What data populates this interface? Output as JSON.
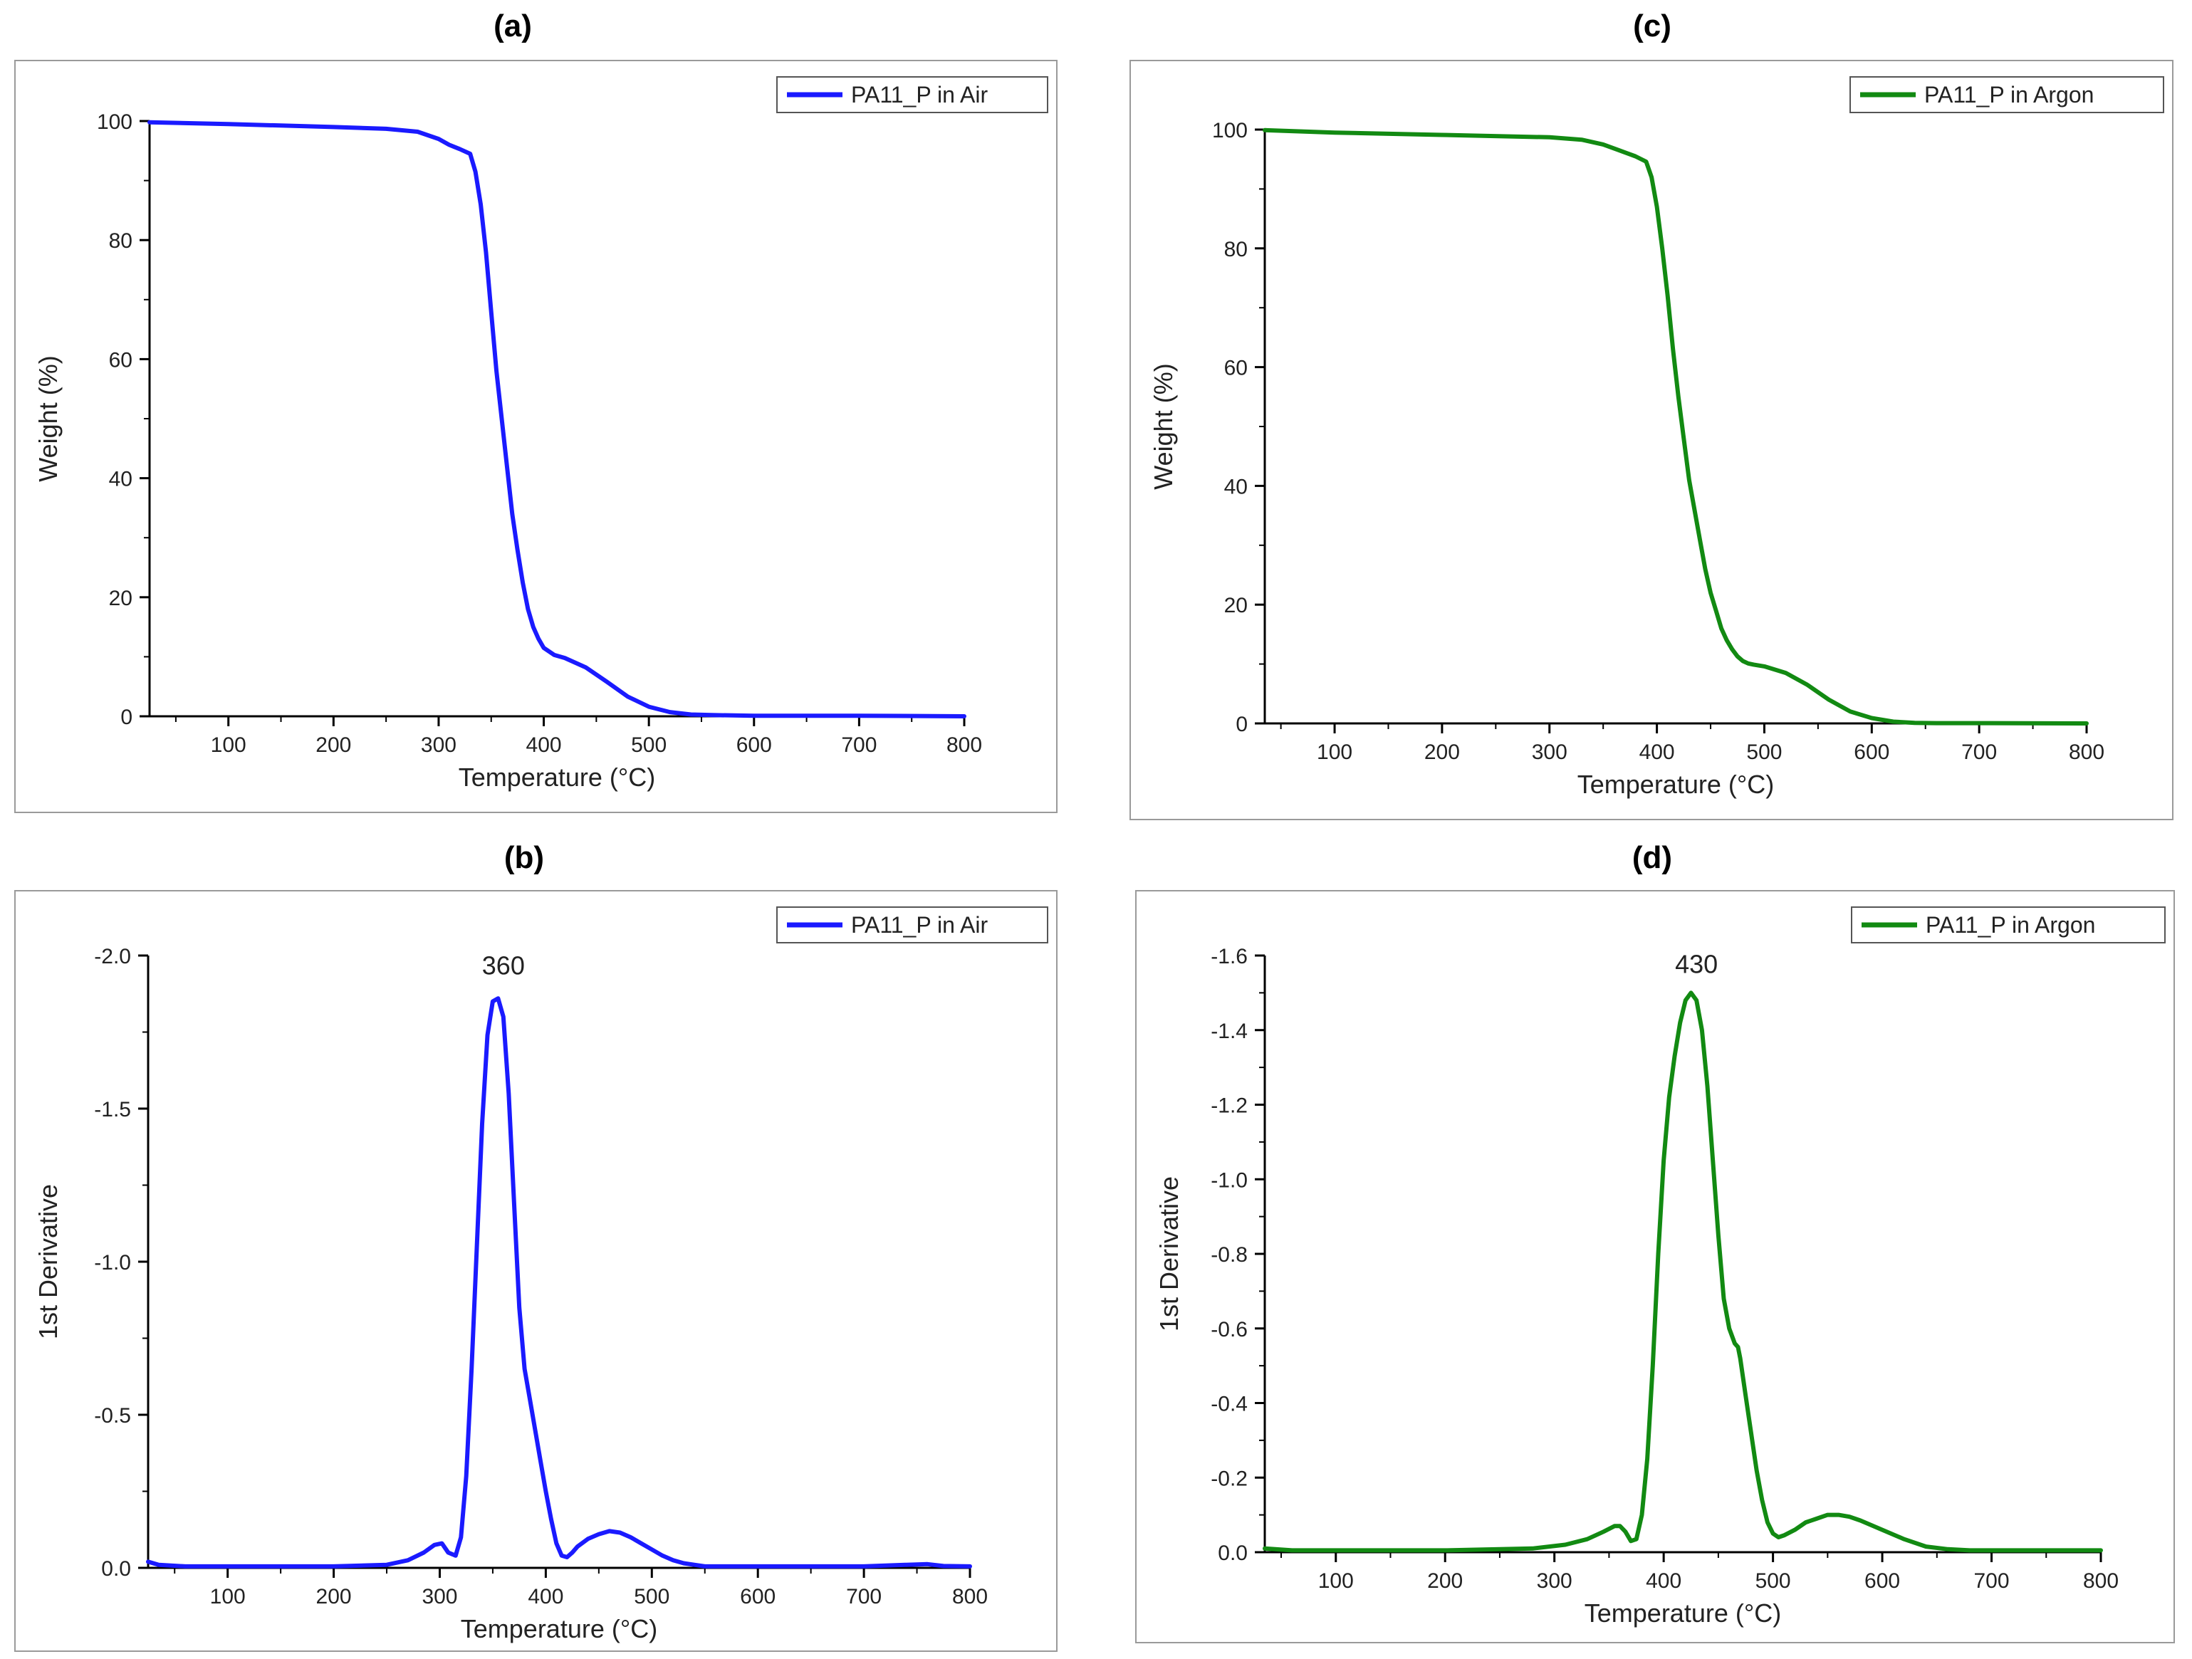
{
  "colors": {
    "air": "#1a1aff",
    "argon": "#128a12",
    "axis": "#000000",
    "frame": "#9a9a9a"
  },
  "chart_data": [
    {
      "panel": "(a)",
      "type": "line",
      "xlabel": "Temperature (°C)",
      "ylabel": "Weight (%)",
      "xlim": [
        25,
        800
      ],
      "ylim": [
        0,
        100
      ],
      "xticks": [
        100,
        200,
        300,
        400,
        500,
        600,
        700,
        800
      ],
      "yticks": [
        0,
        20,
        40,
        60,
        80,
        100
      ],
      "yticklabels": [
        "0",
        "20",
        "40",
        "60",
        "80",
        "100"
      ],
      "legend": "PA11_P in Air",
      "legend_position": "top-right",
      "color_key": "air",
      "series": [
        {
          "name": "PA11_P in Air",
          "x": [
            25,
            100,
            200,
            250,
            280,
            300,
            310,
            320,
            330,
            335,
            340,
            345,
            350,
            355,
            360,
            365,
            370,
            375,
            380,
            385,
            390,
            395,
            400,
            410,
            420,
            440,
            460,
            480,
            500,
            520,
            540,
            560,
            600,
            700,
            800
          ],
          "y": [
            99.8,
            99.5,
            99.0,
            98.7,
            98.2,
            97,
            96,
            95.3,
            94.5,
            91.5,
            86,
            78,
            68,
            58,
            50,
            42,
            34,
            28,
            22.5,
            18,
            15,
            13,
            11.5,
            10.3,
            9.8,
            8.2,
            5.8,
            3.3,
            1.6,
            0.7,
            0.3,
            0.2,
            0.1,
            0.1,
            0
          ]
        }
      ]
    },
    {
      "panel": "(b)",
      "type": "line",
      "xlabel": "Temperature (°C)",
      "ylabel": "1st Derivative",
      "xlim": [
        25,
        800
      ],
      "ylim": [
        0,
        -2.0
      ],
      "xticks": [
        100,
        200,
        300,
        400,
        500,
        600,
        700,
        800
      ],
      "yticks": [
        0,
        -0.5,
        -1.0,
        -1.5,
        -2.0
      ],
      "yticklabels": [
        "0.0",
        "-0.5",
        "-1.0",
        "-1.5",
        "-2.0"
      ],
      "legend": "PA11_P in Air",
      "legend_position": "top-right",
      "color_key": "air",
      "annotations": [
        {
          "text": "360",
          "x": 360,
          "y": -1.91
        }
      ],
      "series": [
        {
          "name": "PA11_P in Air",
          "x": [
            25,
            35,
            60,
            100,
            200,
            250,
            270,
            285,
            295,
            302,
            308,
            315,
            320,
            325,
            330,
            335,
            340,
            345,
            350,
            355,
            360,
            365,
            370,
            375,
            380,
            385,
            390,
            395,
            400,
            405,
            410,
            415,
            420,
            425,
            430,
            440,
            450,
            460,
            470,
            480,
            490,
            500,
            510,
            520,
            530,
            540,
            550,
            560,
            600,
            700,
            740,
            760,
            775,
            800
          ],
          "y": [
            -0.02,
            -0.01,
            -0.005,
            -0.005,
            -0.005,
            -0.01,
            -0.025,
            -0.05,
            -0.075,
            -0.08,
            -0.05,
            -0.04,
            -0.1,
            -0.3,
            -0.65,
            -1.05,
            -1.45,
            -1.74,
            -1.85,
            -1.86,
            -1.8,
            -1.55,
            -1.2,
            -0.85,
            -0.65,
            -0.55,
            -0.45,
            -0.35,
            -0.25,
            -0.16,
            -0.08,
            -0.04,
            -0.035,
            -0.05,
            -0.07,
            -0.095,
            -0.11,
            -0.12,
            -0.115,
            -0.1,
            -0.08,
            -0.06,
            -0.04,
            -0.025,
            -0.015,
            -0.01,
            -0.005,
            -0.005,
            -0.005,
            -0.005,
            -0.01,
            -0.012,
            -0.006,
            -0.005
          ]
        }
      ]
    },
    {
      "panel": "(c)",
      "type": "line",
      "xlabel": "Temperature (°C)",
      "ylabel": "Weight (%)",
      "xlim": [
        35,
        800
      ],
      "ylim": [
        0,
        100
      ],
      "xticks": [
        100,
        200,
        300,
        400,
        500,
        600,
        700,
        800
      ],
      "yticks": [
        0,
        20,
        40,
        60,
        80,
        100
      ],
      "yticklabels": [
        "0",
        "20",
        "40",
        "60",
        "80",
        "100"
      ],
      "legend": "PA11_P in Argon",
      "legend_position": "top-right",
      "color_key": "argon",
      "series": [
        {
          "name": "PA11_P in Argon",
          "x": [
            35,
            100,
            200,
            300,
            330,
            350,
            365,
            380,
            390,
            395,
            400,
            405,
            410,
            415,
            420,
            425,
            430,
            435,
            440,
            445,
            450,
            455,
            460,
            465,
            470,
            475,
            480,
            485,
            490,
            500,
            520,
            540,
            560,
            580,
            600,
            620,
            640,
            660,
            700,
            800
          ],
          "y": [
            99.9,
            99.5,
            99.1,
            98.7,
            98.3,
            97.5,
            96.5,
            95.5,
            94.6,
            92,
            87,
            80,
            72,
            63,
            55,
            48,
            41,
            36,
            31,
            26,
            22,
            19,
            16,
            14,
            12.5,
            11.3,
            10.5,
            10.1,
            9.9,
            9.6,
            8.5,
            6.5,
            4,
            2,
            0.9,
            0.3,
            0.1,
            0.05,
            0.05,
            0
          ]
        }
      ]
    },
    {
      "panel": "(d)",
      "type": "line",
      "xlabel": "Temperature (°C)",
      "ylabel": "1st Derivative",
      "xlim": [
        35,
        800
      ],
      "ylim": [
        0,
        -1.6
      ],
      "xticks": [
        100,
        200,
        300,
        400,
        500,
        600,
        700,
        800
      ],
      "yticks": [
        0,
        -0.2,
        -0.4,
        -0.6,
        -0.8,
        -1.0,
        -1.2,
        -1.4,
        -1.6
      ],
      "yticklabels": [
        "0.0",
        "-0.2",
        "-0.4",
        "-0.6",
        "-0.8",
        "-1.0",
        "-1.2",
        "-1.4",
        "-1.6"
      ],
      "legend": "PA11_P in Argon",
      "legend_position": "top-right",
      "color_key": "argon",
      "annotations": [
        {
          "text": "430",
          "x": 430,
          "y": -1.53
        }
      ],
      "series": [
        {
          "name": "PA11_P in Argon",
          "x": [
            35,
            60,
            100,
            200,
            280,
            310,
            330,
            345,
            355,
            360,
            365,
            370,
            375,
            380,
            385,
            390,
            395,
            400,
            405,
            410,
            415,
            420,
            425,
            430,
            435,
            440,
            445,
            450,
            455,
            460,
            465,
            468,
            470,
            475,
            480,
            485,
            490,
            495,
            500,
            505,
            510,
            520,
            530,
            540,
            550,
            560,
            570,
            580,
            600,
            620,
            640,
            660,
            680,
            700,
            800
          ],
          "y": [
            -0.01,
            -0.005,
            -0.005,
            -0.005,
            -0.01,
            -0.02,
            -0.035,
            -0.055,
            -0.07,
            -0.07,
            -0.055,
            -0.03,
            -0.035,
            -0.1,
            -0.25,
            -0.5,
            -0.8,
            -1.05,
            -1.22,
            -1.33,
            -1.42,
            -1.48,
            -1.5,
            -1.48,
            -1.4,
            -1.25,
            -1.05,
            -0.85,
            -0.68,
            -0.6,
            -0.56,
            -0.55,
            -0.52,
            -0.42,
            -0.32,
            -0.22,
            -0.14,
            -0.08,
            -0.05,
            -0.04,
            -0.045,
            -0.06,
            -0.08,
            -0.09,
            -0.1,
            -0.1,
            -0.095,
            -0.085,
            -0.06,
            -0.035,
            -0.015,
            -0.008,
            -0.005,
            -0.005,
            -0.005
          ]
        }
      ]
    }
  ]
}
